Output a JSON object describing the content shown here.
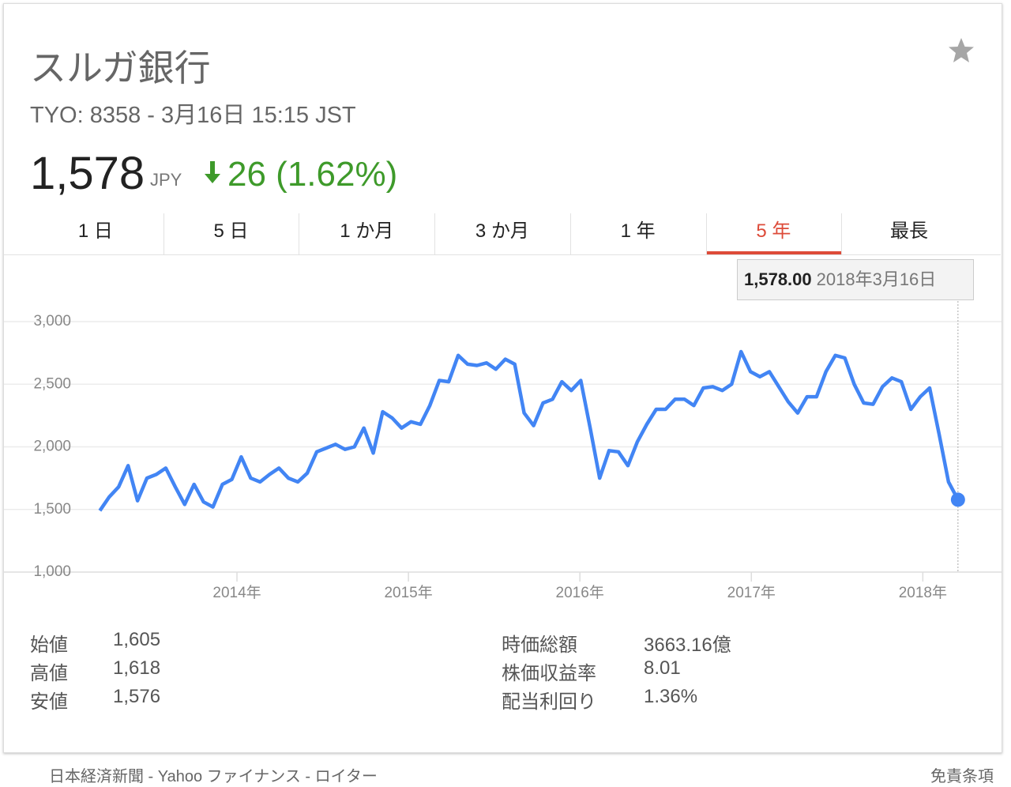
{
  "header": {
    "title": "スルガ銀行",
    "subtitle": "TYO: 8358 - 3月16日 15:15 JST",
    "price": "1,578",
    "currency": "JPY",
    "change": "26 (1.62%)"
  },
  "tabs": {
    "items": [
      "1 日",
      "5 日",
      "1 か月",
      "3 か月",
      "1 年",
      "5 年",
      "最長"
    ],
    "selected": 5
  },
  "tooltip": {
    "value": "1,578.00",
    "date": "2018年3月16日"
  },
  "chart_data": {
    "type": "line",
    "x": [
      2013.2,
      2013.255,
      2013.31,
      2013.365,
      2013.42,
      2013.475,
      2013.53,
      2013.585,
      2013.64,
      2013.695,
      2013.75,
      2013.805,
      2013.86,
      2013.915,
      2013.97,
      2014.025,
      2014.08,
      2014.135,
      2014.19,
      2014.245,
      2014.3,
      2014.355,
      2014.41,
      2014.465,
      2014.52,
      2014.575,
      2014.63,
      2014.685,
      2014.74,
      2014.795,
      2014.85,
      2014.905,
      2014.96,
      2015.015,
      2015.07,
      2015.125,
      2015.18,
      2015.235,
      2015.29,
      2015.345,
      2015.4,
      2015.455,
      2015.51,
      2015.565,
      2015.62,
      2015.675,
      2015.73,
      2015.785,
      2015.84,
      2015.895,
      2015.95,
      2016.005,
      2016.06,
      2016.115,
      2016.17,
      2016.225,
      2016.28,
      2016.335,
      2016.39,
      2016.445,
      2016.5,
      2016.555,
      2016.61,
      2016.665,
      2016.72,
      2016.775,
      2016.83,
      2016.885,
      2016.94,
      2016.995,
      2017.05,
      2017.105,
      2017.16,
      2017.215,
      2017.27,
      2017.325,
      2017.38,
      2017.435,
      2017.49,
      2017.545,
      2017.6,
      2017.655,
      2017.71,
      2017.765,
      2017.82,
      2017.875,
      2017.93,
      2017.985,
      2018.04,
      2018.095,
      2018.15,
      2018.205
    ],
    "series": [
      {
        "color": "#4285f4",
        "values": [
          1490,
          1600,
          1680,
          1850,
          1570,
          1750,
          1780,
          1830,
          1680,
          1540,
          1700,
          1560,
          1520,
          1700,
          1740,
          1920,
          1750,
          1720,
          1780,
          1830,
          1750,
          1720,
          1790,
          1960,
          1990,
          2020,
          1980,
          2000,
          2150,
          1950,
          2280,
          2230,
          2150,
          2200,
          2180,
          2330,
          2530,
          2520,
          2730,
          2660,
          2650,
          2670,
          2620,
          2700,
          2660,
          2270,
          2170,
          2350,
          2380,
          2520,
          2450,
          2530,
          2150,
          1750,
          1970,
          1960,
          1850,
          2040,
          2180,
          2300,
          2300,
          2380,
          2380,
          2330,
          2470,
          2480,
          2450,
          2500,
          2760,
          2600,
          2560,
          2600,
          2480,
          2360,
          2270,
          2400,
          2400,
          2600,
          2730,
          2710,
          2500,
          2350,
          2340,
          2480,
          2550,
          2520,
          2300,
          2400,
          2470,
          2100,
          1720,
          1578
        ]
      }
    ],
    "xlim": [
      2012.641,
      2018.459
    ],
    "ylim": [
      1000,
      3000
    ],
    "xticks": [
      {
        "value": 2014,
        "label": "2014年"
      },
      {
        "value": 2015,
        "label": "2015年"
      },
      {
        "value": 2016,
        "label": "2016年"
      },
      {
        "value": 2017,
        "label": "2017年"
      },
      {
        "value": 2018,
        "label": "2018年"
      }
    ],
    "yticks": [
      {
        "value": 1000,
        "label": "1,000"
      },
      {
        "value": 1500,
        "label": "1,500"
      },
      {
        "value": 2000,
        "label": "2,000"
      },
      {
        "value": 2500,
        "label": "2,500"
      },
      {
        "value": 3000,
        "label": "3,000"
      }
    ],
    "grid": true
  },
  "stats": {
    "left": [
      [
        "始値",
        "1,605"
      ],
      [
        "高値",
        "1,618"
      ],
      [
        "安値",
        "1,576"
      ]
    ],
    "right": [
      [
        "時価総額",
        "3663.16億"
      ],
      [
        "株価収益率",
        "8.01"
      ],
      [
        "配当利回り",
        "1.36%"
      ]
    ]
  },
  "footer": {
    "sources": "日本経済新聞 - Yahoo ファイナンス - ロイター",
    "disclaimer": "免責条項"
  }
}
